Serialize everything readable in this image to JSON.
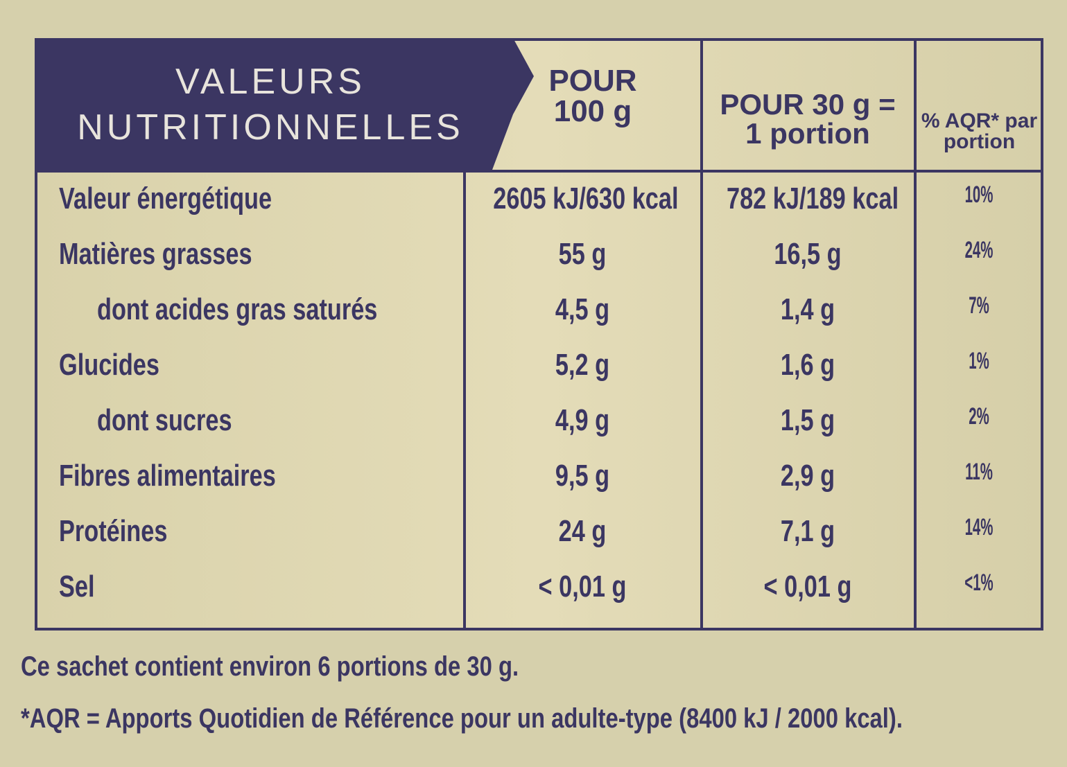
{
  "table": {
    "header": {
      "title": "VALEURS NUTRITIONNELLES",
      "col1": "POUR 100 g",
      "col2": "POUR 30 g = 1 portion",
      "col3": "% AQR* par portion"
    },
    "rows": [
      [
        "Valeur énergétique",
        "2605 kJ/630 kcal",
        "782 kJ/189 kcal",
        "10%"
      ],
      [
        "Matières grasses",
        "55 g",
        "16,5 g",
        "24%"
      ],
      [
        "dont acides gras saturés",
        "4,5 g",
        "1,4 g",
        "7%"
      ],
      [
        "Glucides",
        "5,2 g",
        "1,6 g",
        "1%"
      ],
      [
        "dont sucres",
        "4,9 g",
        "1,5 g",
        "2%"
      ],
      [
        "Fibres alimentaires",
        "9,5 g",
        "2,9 g",
        "11%"
      ],
      [
        "Protéines",
        "24 g",
        "7,1 g",
        "14%"
      ],
      [
        "Sel",
        "< 0,01 g",
        "< 0,01 g",
        "<1%"
      ]
    ]
  },
  "footer": {
    "note": "Ce sachet contient environ 6 portions de 30 g.",
    "definition": "*AQR = Apports Quotidien de Référence pour un adulte-type (8400 kJ / 2000 kcal)."
  }
}
